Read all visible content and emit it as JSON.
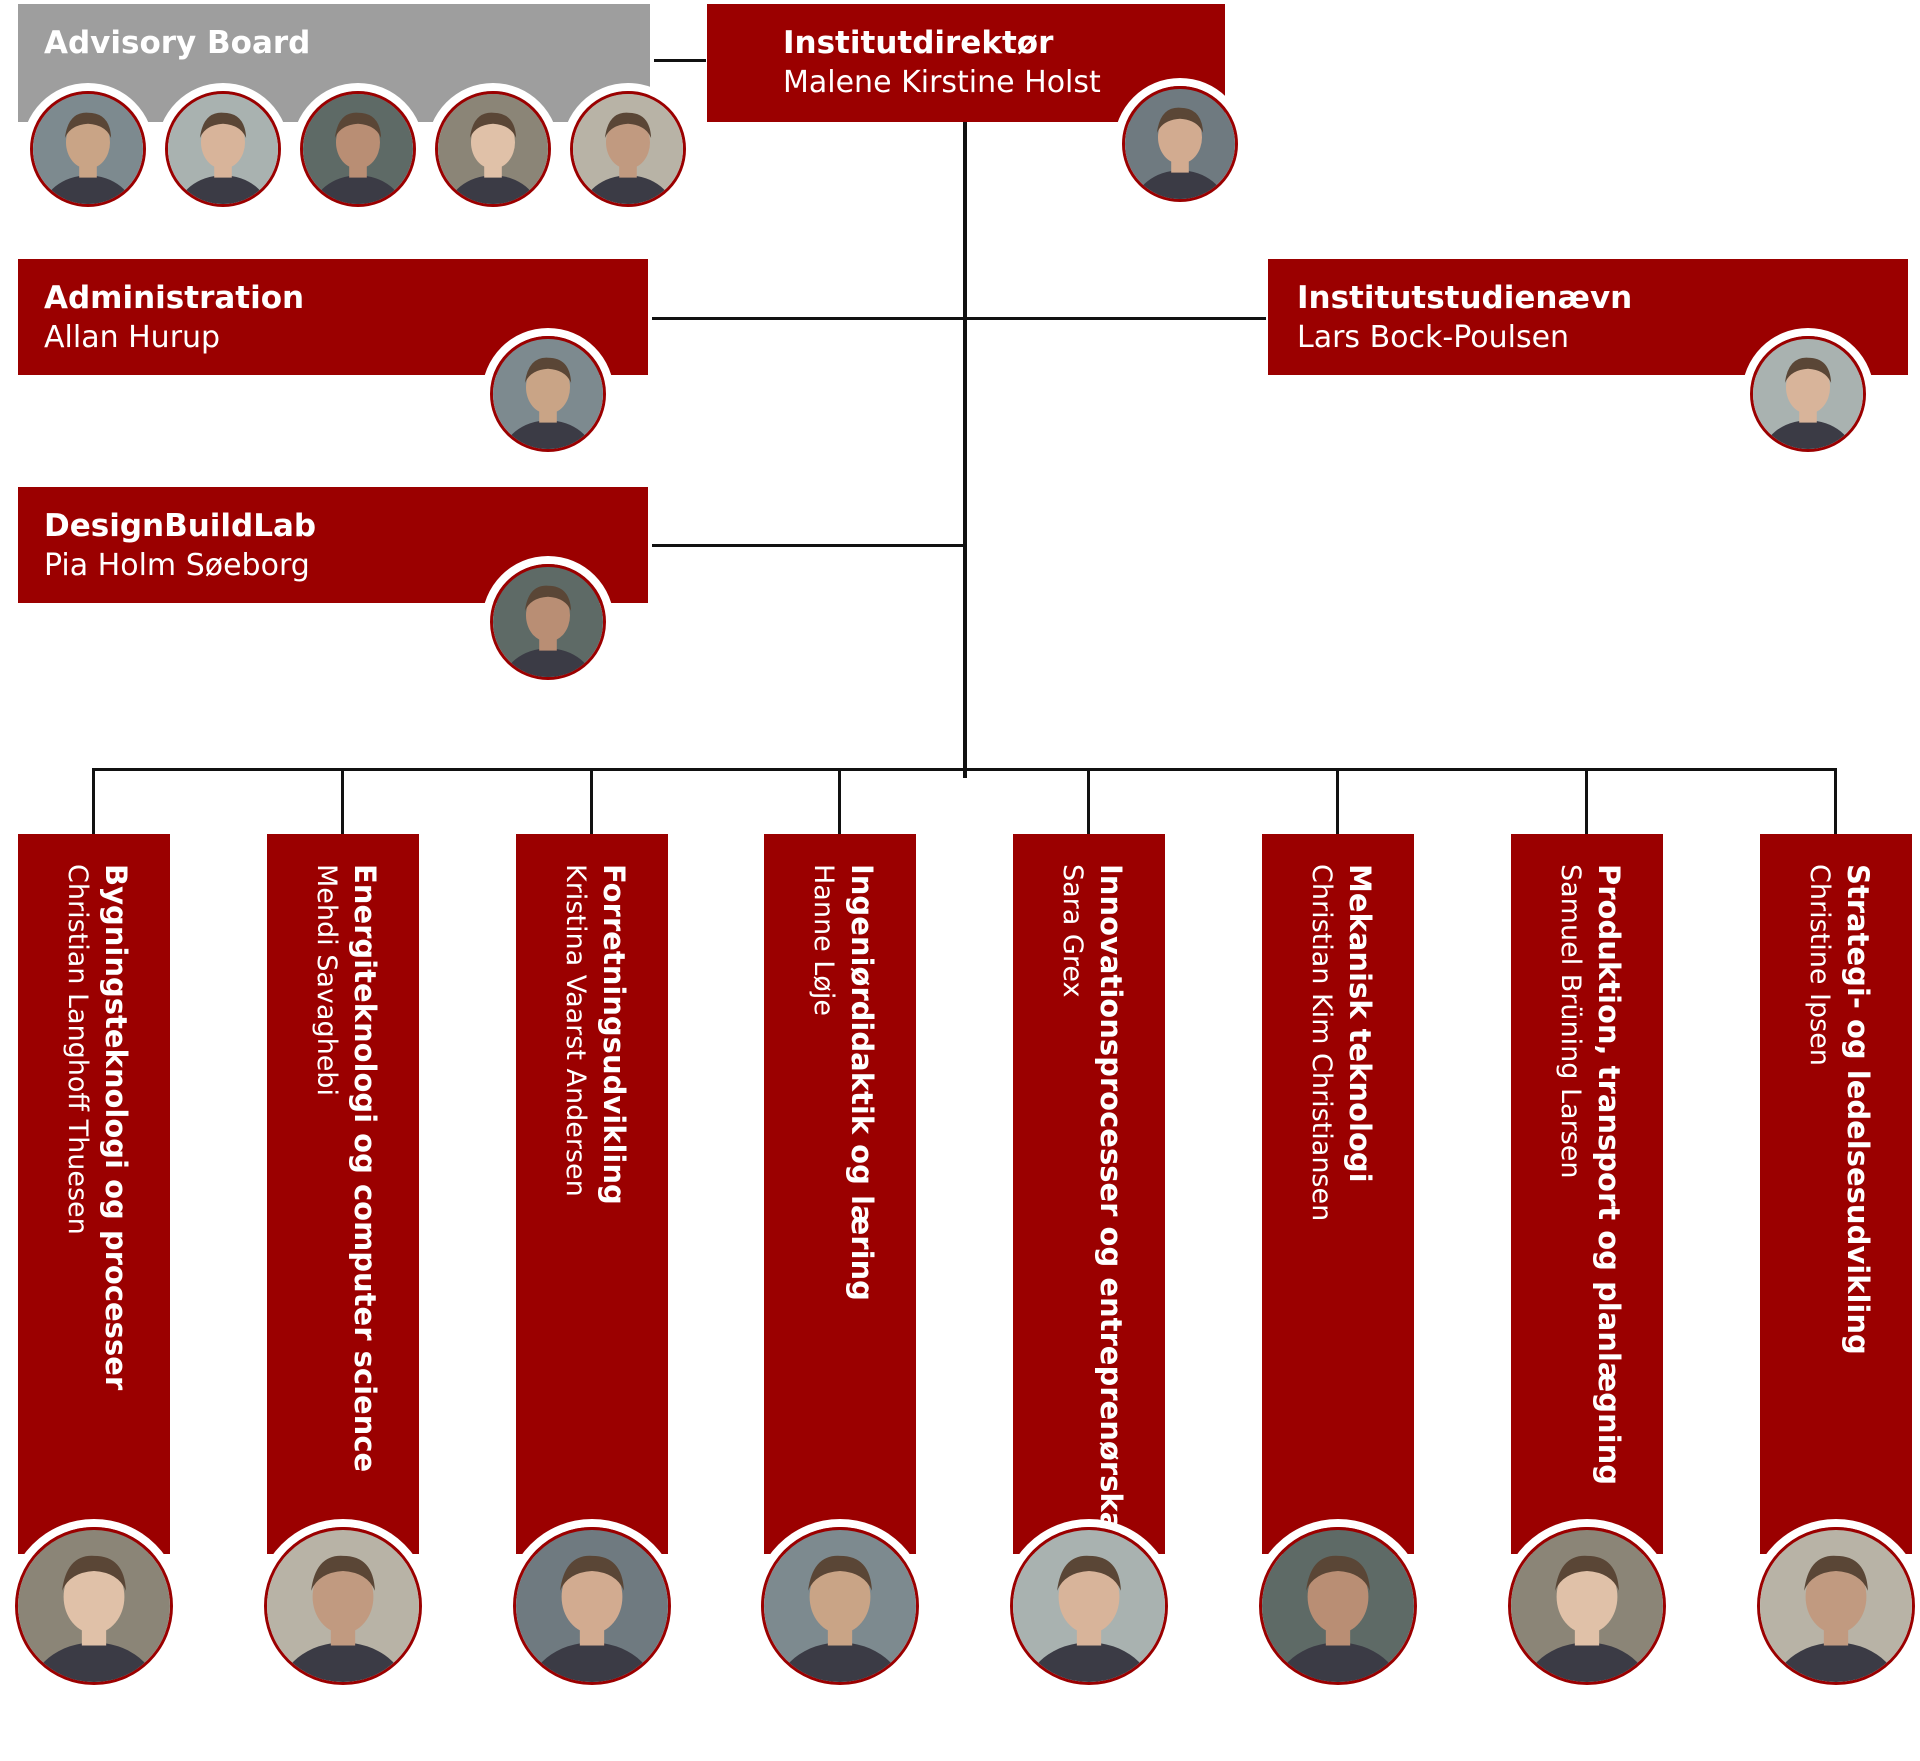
{
  "advisory": {
    "title": "Advisory Board",
    "members": 5
  },
  "director": {
    "title": "Institutdirektør",
    "name": "Malene Kirstine Holst"
  },
  "administration": {
    "title": "Administration",
    "name": "Allan Hurup"
  },
  "studynaevn": {
    "title": "Institutstudienævn",
    "name": "Lars Bock-Poulsen"
  },
  "designbuild": {
    "title": "DesignBuildLab",
    "name": "Pia Holm Søeborg"
  },
  "sections": [
    {
      "title": "Bygningsteknologi og processer",
      "name": "Christian Langhoff Thuesen"
    },
    {
      "title": "Energiteknologi og computer science",
      "name": "Mehdi Savaghebi"
    },
    {
      "title": "Forretningsudvikling",
      "name": "Kristina Vaarst Andersen"
    },
    {
      "title": "Ingeniørdidaktik og læring",
      "name": "Hanne Løje"
    },
    {
      "title": "Innovationsprocesser og entreprenørskab",
      "name": "Sara Grex"
    },
    {
      "title": "Mekanisk teknologi",
      "name": "Christian Kim Christiansen"
    },
    {
      "title": "Produktion, transport og planlægning",
      "name": "Samuel Brüning Larsen"
    },
    {
      "title": "Strategi- og ledelsesudvikling",
      "name": "Christine Ipsen"
    }
  ],
  "colors": {
    "brand": "#9b0000",
    "advisory": "#9e9e9e",
    "connector": "#111111"
  }
}
